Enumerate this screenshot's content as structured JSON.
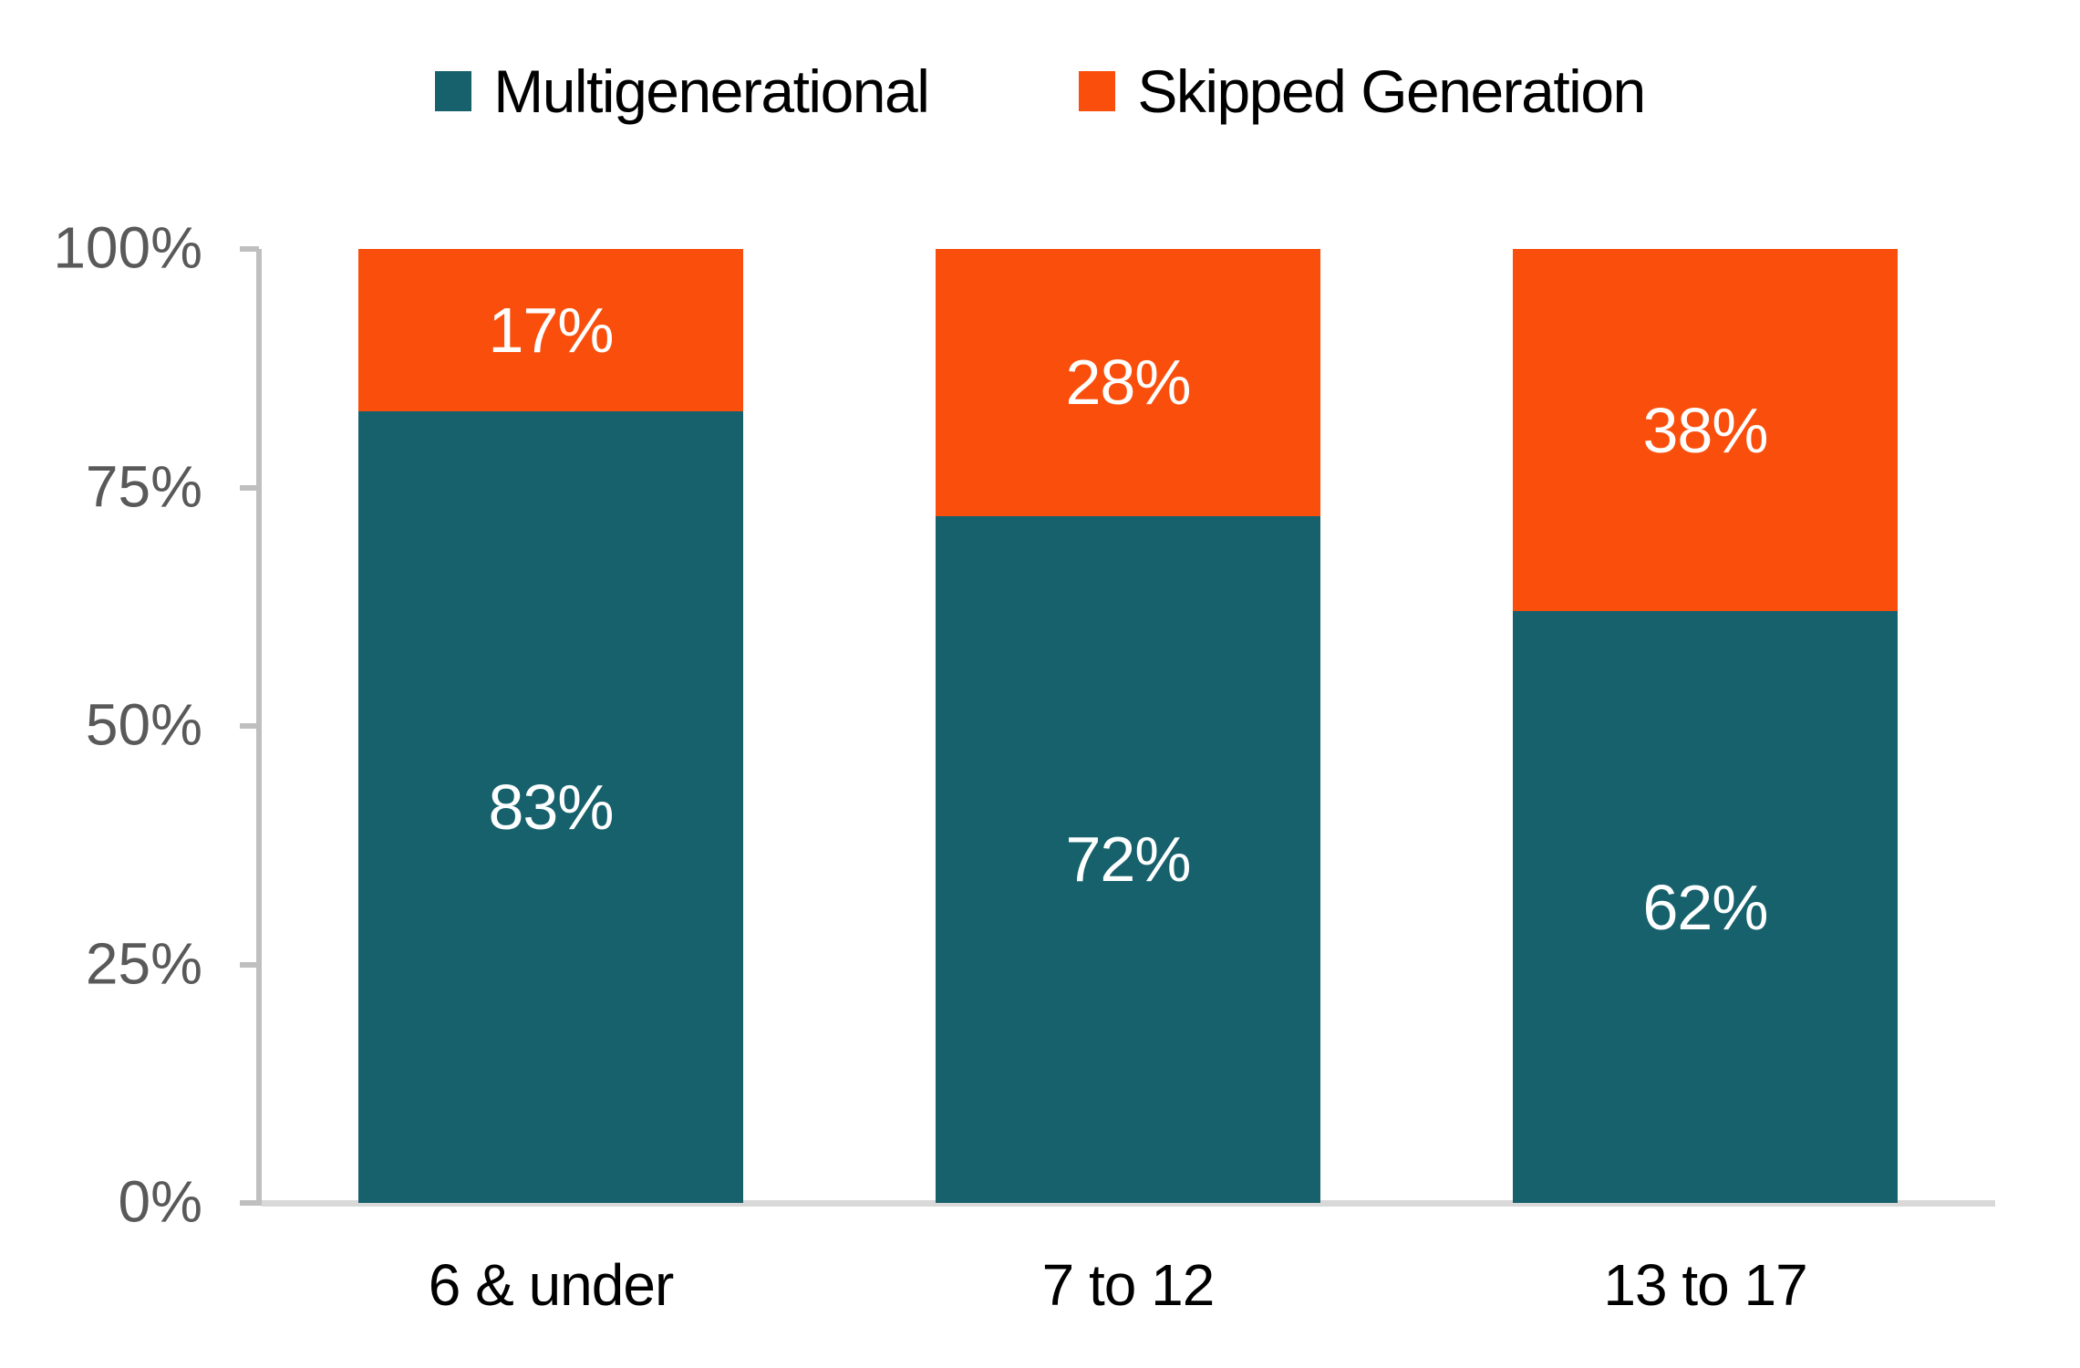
{
  "chart_data": {
    "type": "bar",
    "stacked": true,
    "stacked_total": 100,
    "categories": [
      "6 & under",
      "7 to 12",
      "13 to 17"
    ],
    "series": [
      {
        "name": "Multigenerational",
        "color": "#16616C",
        "values": [
          83,
          72,
          62
        ],
        "labels": [
          "83%",
          "72%",
          "62%"
        ]
      },
      {
        "name": "Skipped Generation",
        "color": "#FA4E0C",
        "values": [
          17,
          28,
          38
        ],
        "labels": [
          "17%",
          "28%",
          "38%"
        ]
      }
    ],
    "y_axis": {
      "tick_labels": [
        "0%",
        "25%",
        "50%",
        "75%",
        "100%"
      ],
      "tick_values": [
        0,
        25,
        50,
        75,
        100
      ],
      "range": [
        0,
        100
      ]
    },
    "legend_position": "top",
    "grid": false,
    "data_label_color": "#FFFFFF",
    "axis_label_color": "#595959",
    "category_label_color": "#000000",
    "axis_line_color": "#BFBFBF",
    "baseline_color": "#D9D9D9",
    "background_color": "#FFFFFF"
  }
}
